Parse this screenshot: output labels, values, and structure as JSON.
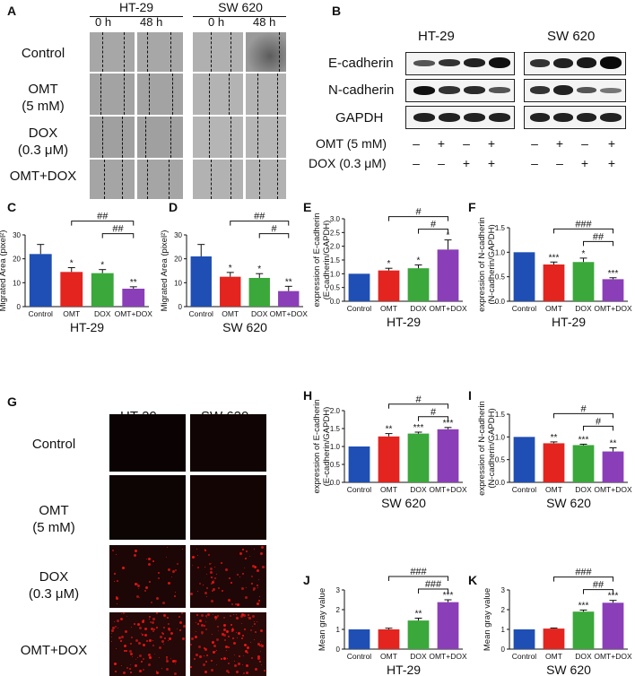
{
  "panel_A": {
    "letter": "A",
    "cell_lines": [
      "HT-29",
      "SW 620"
    ],
    "timepoints": [
      "0 h",
      "48 h",
      "0 h",
      "48 h"
    ],
    "rows": [
      "Control",
      "OMT\n(5 mM)",
      "DOX\n(0.3 μM)",
      "OMT+DOX"
    ]
  },
  "panel_B": {
    "letter": "B",
    "cell_lines": [
      "HT-29",
      "SW 620"
    ],
    "proteins": [
      "E-cadherin",
      "N-cadherin",
      "GAPDH"
    ],
    "treatments": [
      {
        "label": "OMT (5 mM)",
        "signs": [
          "–",
          "+",
          "–",
          "+",
          "–",
          "+",
          "–",
          "+"
        ]
      },
      {
        "label": "DOX (0.3 μM)",
        "signs": [
          "–",
          "–",
          "+",
          "+",
          "–",
          "–",
          "+",
          "+"
        ]
      }
    ]
  },
  "panel_G": {
    "letter": "G",
    "cell_lines": [
      "HT-29",
      "SW 620"
    ],
    "rows": [
      "Control",
      "OMT\n(5 mM)",
      "DOX\n(0.3 μM)",
      "OMT+DOX"
    ]
  },
  "colors": {
    "Control": "#1f4fb4",
    "OMT": "#e3241f",
    "DOX": "#3aa83a",
    "OMT+DOX": "#8a3fb8"
  },
  "chart_data": [
    {
      "panel": "C",
      "type": "bar",
      "categories": [
        "Control",
        "OMT",
        "DOX",
        "OMT+DOX"
      ],
      "values": [
        22,
        14.5,
        14,
        7.5
      ],
      "errors": [
        4,
        1.8,
        1.5,
        0.8
      ],
      "ylabel": "Migrated Area (pixel²)",
      "xlabel": "HT-29",
      "ylim": [
        0,
        30
      ],
      "yticks": [
        0,
        10,
        20,
        30
      ],
      "stars": [
        "",
        "*",
        "*",
        "**"
      ],
      "brackets": [
        {
          "from": 1,
          "to": 3,
          "label": "##"
        },
        {
          "from": 2,
          "to": 3,
          "label": "##"
        }
      ]
    },
    {
      "panel": "D",
      "type": "bar",
      "categories": [
        "Control",
        "OMT",
        "DOX",
        "OMT+DOX"
      ],
      "values": [
        21,
        12.5,
        12,
        6.5
      ],
      "errors": [
        5,
        1.8,
        1.8,
        2
      ],
      "ylabel": "Migrated Area (pixel²)",
      "xlabel": "SW 620",
      "ylim": [
        0,
        30
      ],
      "yticks": [
        0,
        10,
        20,
        30
      ],
      "stars": [
        "",
        "*",
        "*",
        "**"
      ],
      "brackets": [
        {
          "from": 1,
          "to": 3,
          "label": "##"
        },
        {
          "from": 2,
          "to": 3,
          "label": "#"
        }
      ]
    },
    {
      "panel": "E",
      "type": "bar",
      "categories": [
        "Control",
        "OMT",
        "DOX",
        "OMT+DOX"
      ],
      "values": [
        1.0,
        1.12,
        1.2,
        1.88
      ],
      "errors": [
        0,
        0.08,
        0.12,
        0.35
      ],
      "ylabel": "expression of E-cadherin\n(E-cadherin/GAPDH)",
      "xlabel": "HT-29",
      "ylim": [
        0,
        3.0
      ],
      "yticks": [
        0.0,
        0.5,
        1.0,
        1.5,
        2.0,
        2.5,
        3.0
      ],
      "stars": [
        "",
        "*",
        "*",
        "*"
      ],
      "brackets": [
        {
          "from": 1,
          "to": 3,
          "label": "#"
        },
        {
          "from": 2,
          "to": 3,
          "label": "#"
        }
      ]
    },
    {
      "panel": "F",
      "type": "bar",
      "categories": [
        "Control",
        "OMT",
        "DOX",
        "OMT+DOX"
      ],
      "values": [
        1.0,
        0.75,
        0.8,
        0.45
      ],
      "errors": [
        0,
        0.05,
        0.08,
        0.03
      ],
      "ylabel": "expression of N-cadherin\n(N-cadherin/GAPDH)",
      "xlabel": "HT-29",
      "ylim": [
        0,
        1.5
      ],
      "yticks": [
        0.0,
        0.5,
        1.0,
        1.5
      ],
      "stars": [
        "",
        "***",
        "*",
        "***"
      ],
      "brackets": [
        {
          "from": 1,
          "to": 3,
          "label": "###"
        },
        {
          "from": 2,
          "to": 3,
          "label": "##"
        }
      ]
    },
    {
      "panel": "H",
      "type": "bar",
      "categories": [
        "Control",
        "OMT",
        "DOX",
        "OMT+DOX"
      ],
      "values": [
        1.0,
        1.28,
        1.36,
        1.48
      ],
      "errors": [
        0,
        0.08,
        0.04,
        0.05
      ],
      "ylabel": "expression of E-cadherin\n(E-cadherin/GAPDH)",
      "xlabel": "SW 620",
      "ylim": [
        0,
        2.0
      ],
      "yticks": [
        0.0,
        0.5,
        1.0,
        1.5,
        2.0
      ],
      "stars": [
        "",
        "**",
        "***",
        "***"
      ],
      "brackets": [
        {
          "from": 1,
          "to": 3,
          "label": "#"
        },
        {
          "from": 2,
          "to": 3,
          "label": "#"
        }
      ]
    },
    {
      "panel": "I",
      "type": "bar",
      "categories": [
        "Control",
        "OMT",
        "DOX",
        "OMT+DOX"
      ],
      "values": [
        1.0,
        0.86,
        0.82,
        0.68
      ],
      "errors": [
        0,
        0.03,
        0.02,
        0.08
      ],
      "ylabel": "expression of N-cadherin\n(N-cadherin/GAPDH)",
      "xlabel": "SW 620",
      "ylim": [
        0,
        1.5
      ],
      "yticks": [
        0.0,
        0.5,
        1.0,
        1.5
      ],
      "stars": [
        "",
        "**",
        "***",
        "**"
      ],
      "brackets": [
        {
          "from": 1,
          "to": 3,
          "label": "#"
        },
        {
          "from": 2,
          "to": 3,
          "label": "#"
        }
      ]
    },
    {
      "panel": "J",
      "type": "bar",
      "categories": [
        "Control",
        "OMT",
        "DOX",
        "OMT+DOX"
      ],
      "values": [
        1.0,
        1.0,
        1.45,
        2.38
      ],
      "errors": [
        0,
        0.06,
        0.12,
        0.12
      ],
      "ylabel": "Mean gray value",
      "xlabel": "HT-29",
      "ylim": [
        0,
        3
      ],
      "yticks": [
        0,
        1,
        2,
        3
      ],
      "stars": [
        "",
        "",
        "**",
        "***"
      ],
      "brackets": [
        {
          "from": 1,
          "to": 3,
          "label": "###"
        },
        {
          "from": 2,
          "to": 3,
          "label": "###"
        }
      ]
    },
    {
      "panel": "K",
      "type": "bar",
      "categories": [
        "Control",
        "OMT",
        "DOX",
        "OMT+DOX"
      ],
      "values": [
        1.0,
        1.04,
        1.9,
        2.35
      ],
      "errors": [
        0,
        0.03,
        0.08,
        0.12
      ],
      "ylabel": "Mean gray value",
      "xlabel": "SW 620",
      "ylim": [
        0,
        3
      ],
      "yticks": [
        0,
        1,
        2,
        3
      ],
      "stars": [
        "",
        "",
        "***",
        "***"
      ],
      "brackets": [
        {
          "from": 1,
          "to": 3,
          "label": "###"
        },
        {
          "from": 2,
          "to": 3,
          "label": "##"
        }
      ]
    }
  ]
}
